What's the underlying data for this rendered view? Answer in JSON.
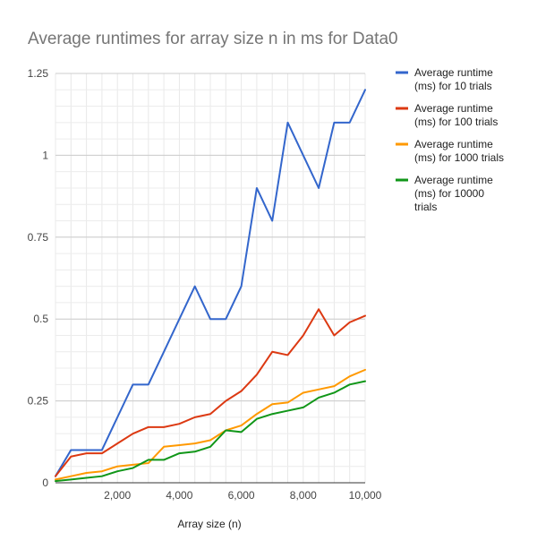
{
  "chart_data": {
    "type": "line",
    "title": "Average runtimes for array size n in ms for Data0",
    "xlabel": "Array size (n)",
    "ylabel": "",
    "xlim": [
      0,
      10000
    ],
    "ylim": [
      0,
      1.25
    ],
    "x_ticks": [
      2000,
      4000,
      6000,
      8000,
      10000
    ],
    "x_tick_labels": [
      "2,000",
      "4,000",
      "6,000",
      "8,000",
      "10,000"
    ],
    "y_ticks": [
      0,
      0.25,
      0.5,
      0.75,
      1,
      1.25
    ],
    "y_tick_labels": [
      "0",
      "0.25",
      "0.5",
      "0.75",
      "1",
      "1.25"
    ],
    "grid": true,
    "legend_position": "right",
    "x": [
      0,
      500,
      1000,
      1500,
      2000,
      2500,
      3000,
      3500,
      4000,
      4500,
      5000,
      5500,
      6000,
      6500,
      7000,
      7500,
      8000,
      8500,
      9000,
      9500,
      10000
    ],
    "series": [
      {
        "name": "Average runtime (ms) for 10 trials",
        "legend_lines": [
          "Average runtime",
          "(ms) for 10 trials"
        ],
        "color": "#3366cc",
        "values": [
          0.02,
          0.1,
          0.1,
          0.1,
          0.2,
          0.3,
          0.3,
          0.4,
          0.5,
          0.6,
          0.5,
          0.5,
          0.6,
          0.9,
          0.8,
          1.1,
          1.0,
          0.9,
          1.1,
          1.1,
          1.2
        ]
      },
      {
        "name": "Average runtime (ms) for 100 trials",
        "legend_lines": [
          "Average runtime",
          "(ms) for 100 trials"
        ],
        "color": "#dc3912",
        "values": [
          0.02,
          0.08,
          0.09,
          0.09,
          0.12,
          0.15,
          0.17,
          0.17,
          0.18,
          0.2,
          0.21,
          0.25,
          0.28,
          0.33,
          0.4,
          0.39,
          0.45,
          0.53,
          0.45,
          0.49,
          0.51
        ]
      },
      {
        "name": "Average runtime (ms) for 1000 trials",
        "legend_lines": [
          "Average runtime",
          "(ms) for 1000 trials"
        ],
        "color": "#ff9900",
        "values": [
          0.01,
          0.02,
          0.03,
          0.035,
          0.05,
          0.055,
          0.06,
          0.11,
          0.115,
          0.12,
          0.13,
          0.16,
          0.175,
          0.21,
          0.24,
          0.245,
          0.275,
          0.285,
          0.295,
          0.325,
          0.345
        ]
      },
      {
        "name": "Average runtime (ms) for 10000 trials",
        "legend_lines": [
          "Average runtime",
          "(ms) for 10000",
          "trials"
        ],
        "color": "#109618",
        "values": [
          0.005,
          0.01,
          0.015,
          0.02,
          0.035,
          0.045,
          0.07,
          0.07,
          0.09,
          0.095,
          0.11,
          0.16,
          0.155,
          0.195,
          0.21,
          0.22,
          0.23,
          0.26,
          0.275,
          0.3,
          0.31
        ]
      }
    ]
  }
}
